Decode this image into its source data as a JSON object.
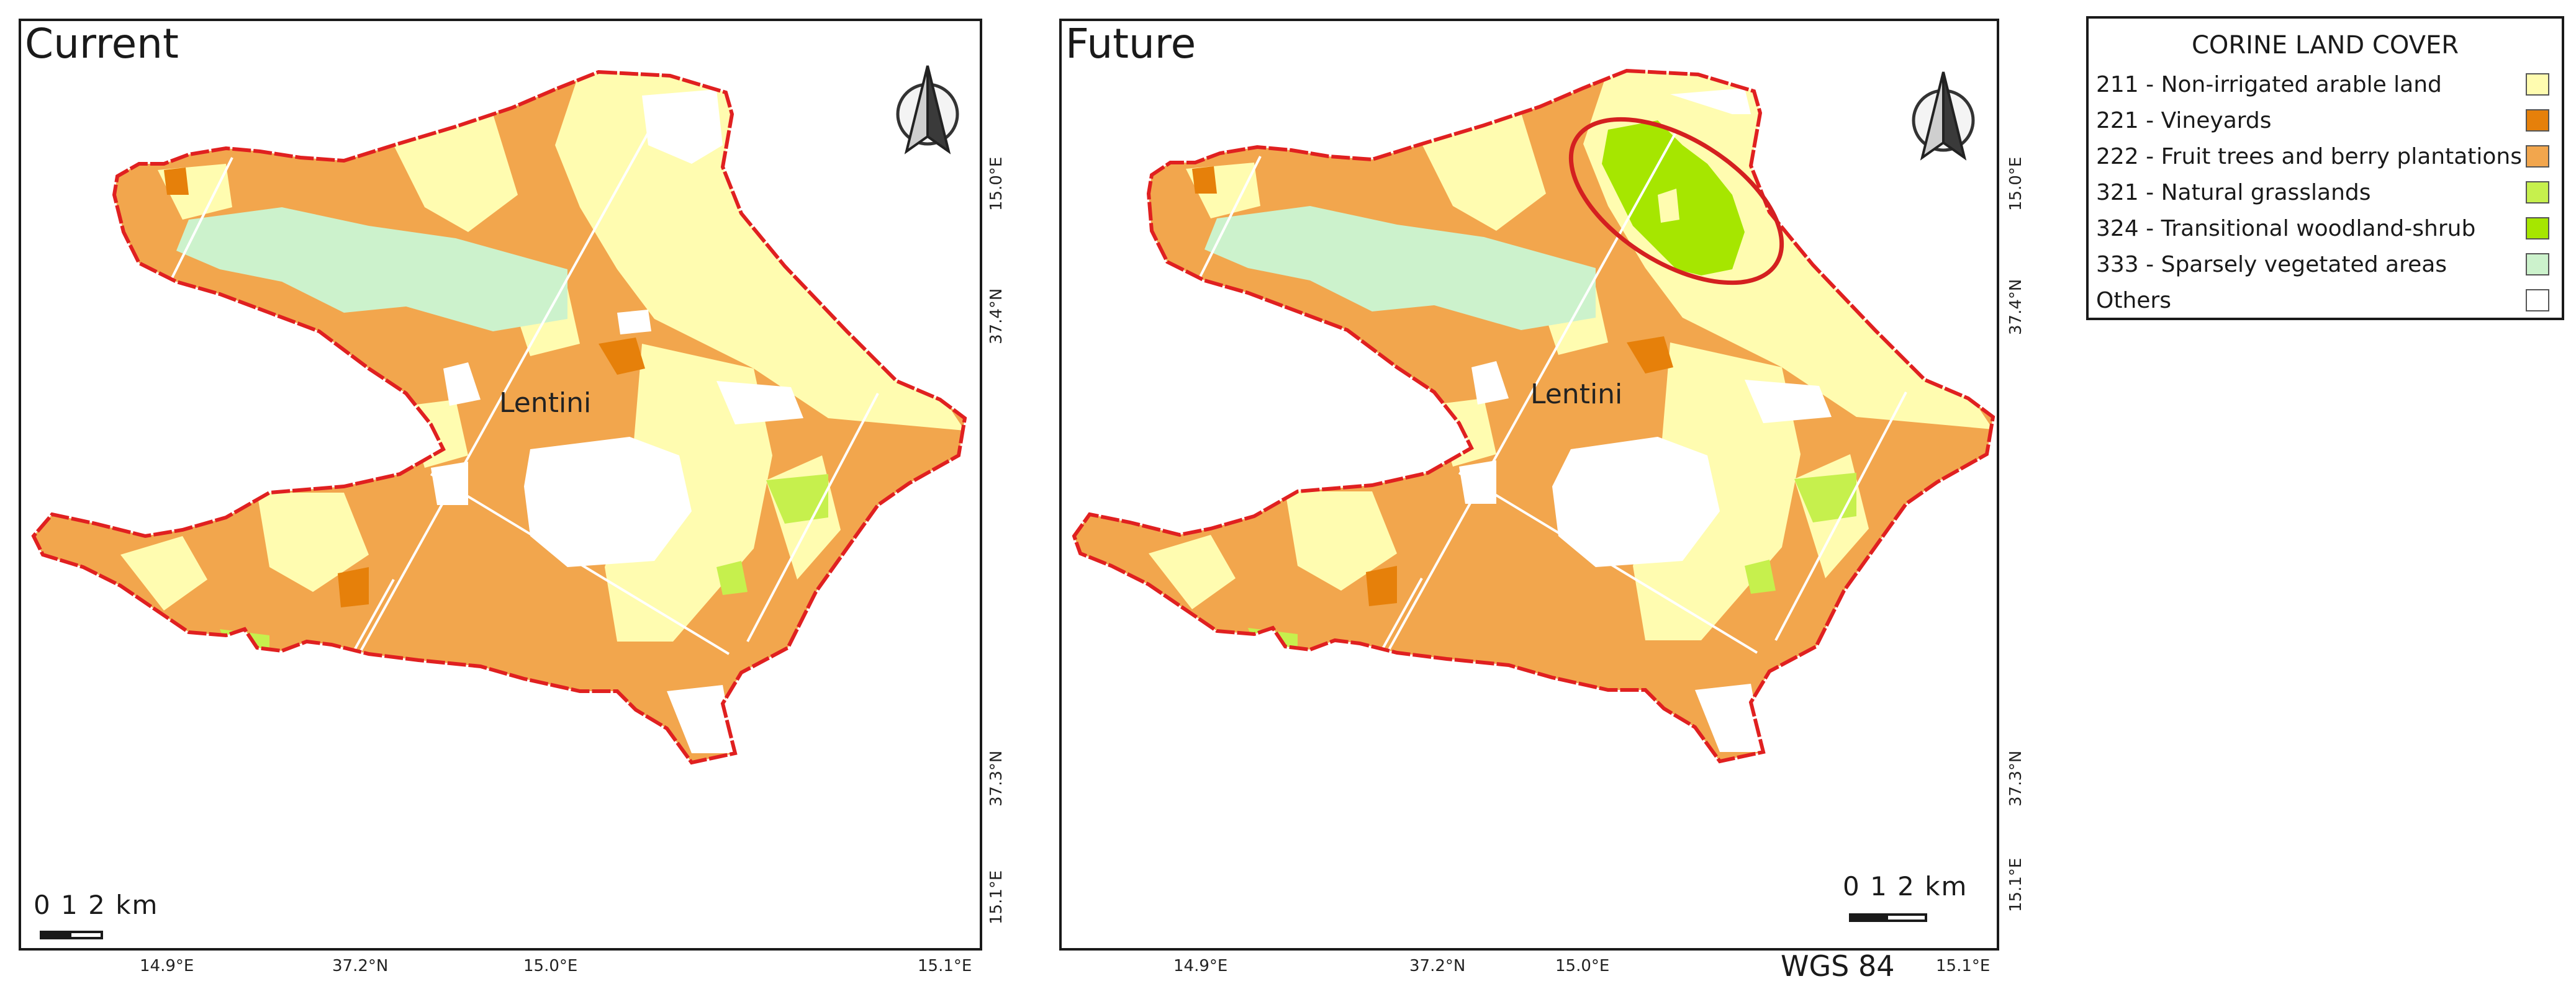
{
  "panels": [
    {
      "title": "Current",
      "place_label": "Lentini",
      "scale": "0  1  2 km"
    },
    {
      "title": "Future",
      "place_label": "Lentini",
      "scale": "0  1  2 km"
    }
  ],
  "axis_labels": {
    "left": {
      "bottom": [
        "14.9°E",
        "37.2°N",
        "15.0°E",
        "15.1°E"
      ],
      "right": [
        "15.0°E",
        "37.4°N",
        "37.3°N",
        "15.1°E"
      ]
    },
    "right": {
      "bottom": [
        "14.9°E",
        "37.2°N",
        "15.0°E",
        "15.1°E"
      ],
      "right": [
        "15.0°E",
        "37.4°N",
        "37.3°N",
        "15.1°E"
      ]
    }
  },
  "crs": "WGS 84",
  "legend": {
    "title": "CORINE LAND COVER",
    "items": [
      {
        "label": "211 - Non-irrigated arable land",
        "color": "#fffcb0"
      },
      {
        "label": "221 - Vineyards",
        "color": "#e6800a"
      },
      {
        "label": "222 - Fruit trees and berry plantations",
        "color": "#f2a64d"
      },
      {
        "label": "321 - Natural grasslands",
        "color": "#c6f04d"
      },
      {
        "label": "324 - Transitional woodland-shrub",
        "color": "#a6e600"
      },
      {
        "label": "333 - Sparsely vegetated areas",
        "color": "#ccf2cc"
      },
      {
        "label": "Others",
        "color": "#ffffff"
      }
    ]
  },
  "colors": {
    "boundary": "#e02020",
    "highlight_ellipse": "#d42020"
  }
}
